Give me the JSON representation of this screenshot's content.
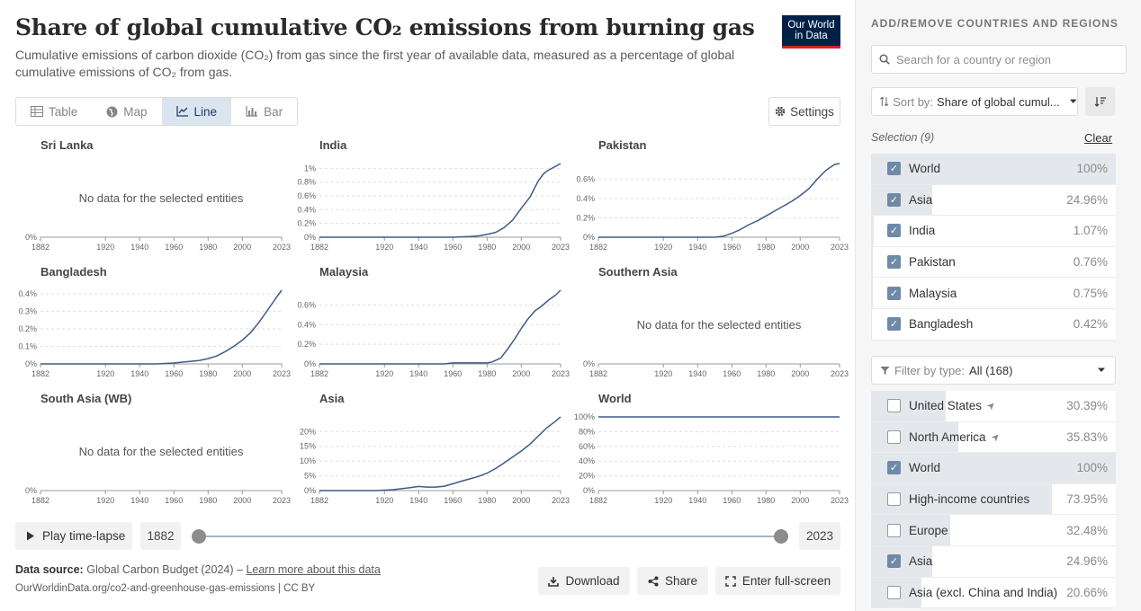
{
  "header": {
    "title": "Share of global cumulative CO₂ emissions from burning gas",
    "subtitle": "Cumulative emissions of carbon dioxide (CO₂) from gas since the first year of available data, measured as a percentage of global cumulative emissions of CO₂ from gas.",
    "logo_line1": "Our World",
    "logo_line2": "in Data"
  },
  "tabs": [
    {
      "label": "Table",
      "icon": "table-icon",
      "active": false
    },
    {
      "label": "Map",
      "icon": "globe-icon",
      "active": false
    },
    {
      "label": "Line",
      "icon": "line-chart-icon",
      "active": true
    },
    {
      "label": "Bar",
      "icon": "bar-chart-icon",
      "active": false
    }
  ],
  "settings_label": "Settings",
  "no_data_text": "No data for the selected entities",
  "chart_data": [
    {
      "type": "line",
      "title": "Sri Lanka",
      "no_data": true,
      "ylim": [
        0,
        1
      ],
      "yticks": [
        {
          "v": 0,
          "label": "0%"
        }
      ],
      "x_ticks": [
        "1882",
        "1920",
        "1940",
        "1960",
        "1980",
        "2000",
        "2023"
      ],
      "x": [],
      "values": []
    },
    {
      "type": "line",
      "title": "India",
      "no_data": false,
      "ylim": [
        0,
        1.07
      ],
      "yticks": [
        {
          "v": 0,
          "label": "0%"
        },
        {
          "v": 0.2,
          "label": "0.2%"
        },
        {
          "v": 0.4,
          "label": "0.4%"
        },
        {
          "v": 0.6,
          "label": "0.6%"
        },
        {
          "v": 0.8,
          "label": "0.8%"
        },
        {
          "v": 1,
          "label": "1%"
        }
      ],
      "x_ticks": [
        "1882",
        "1920",
        "1940",
        "1960",
        "1980",
        "2000",
        "2023"
      ],
      "x": [
        1882,
        1940,
        1960,
        1970,
        1975,
        1980,
        1985,
        1990,
        1995,
        2000,
        2005,
        2010,
        2013,
        2015,
        2020,
        2023
      ],
      "values": [
        0,
        0,
        0,
        0.01,
        0.02,
        0.04,
        0.07,
        0.14,
        0.25,
        0.42,
        0.58,
        0.82,
        0.92,
        0.96,
        1.03,
        1.07
      ]
    },
    {
      "type": "line",
      "title": "Pakistan",
      "no_data": false,
      "ylim": [
        0,
        0.76
      ],
      "yticks": [
        {
          "v": 0,
          "label": "0%"
        },
        {
          "v": 0.2,
          "label": "0.2%"
        },
        {
          "v": 0.4,
          "label": "0.4%"
        },
        {
          "v": 0.6,
          "label": "0.6%"
        }
      ],
      "x_ticks": [
        "1882",
        "1920",
        "1940",
        "1960",
        "1980",
        "2000",
        "2023"
      ],
      "x": [
        1882,
        1950,
        1955,
        1960,
        1965,
        1970,
        1975,
        1980,
        1985,
        1990,
        1995,
        2000,
        2005,
        2010,
        2015,
        2020,
        2023
      ],
      "values": [
        0,
        0,
        0.01,
        0.04,
        0.08,
        0.13,
        0.17,
        0.22,
        0.27,
        0.32,
        0.37,
        0.43,
        0.5,
        0.6,
        0.69,
        0.75,
        0.76
      ]
    },
    {
      "type": "line",
      "title": "Bangladesh",
      "no_data": false,
      "ylim": [
        0,
        0.42
      ],
      "yticks": [
        {
          "v": 0,
          "label": "0%"
        },
        {
          "v": 0.1,
          "label": "0.1%"
        },
        {
          "v": 0.2,
          "label": "0.2%"
        },
        {
          "v": 0.3,
          "label": "0.3%"
        },
        {
          "v": 0.4,
          "label": "0.4%"
        }
      ],
      "x_ticks": [
        "1882",
        "1920",
        "1940",
        "1960",
        "1980",
        "2000",
        "2023"
      ],
      "x": [
        1882,
        1950,
        1960,
        1965,
        1970,
        1975,
        1980,
        1985,
        1990,
        1995,
        2000,
        2005,
        2010,
        2015,
        2020,
        2023
      ],
      "values": [
        0,
        0,
        0.005,
        0.01,
        0.015,
        0.02,
        0.03,
        0.045,
        0.07,
        0.1,
        0.135,
        0.18,
        0.24,
        0.31,
        0.38,
        0.42
      ]
    },
    {
      "type": "line",
      "title": "Malaysia",
      "no_data": false,
      "ylim": [
        0,
        0.75
      ],
      "yticks": [
        {
          "v": 0,
          "label": "0%"
        },
        {
          "v": 0.2,
          "label": "0.2%"
        },
        {
          "v": 0.4,
          "label": "0.4%"
        },
        {
          "v": 0.6,
          "label": "0.6%"
        }
      ],
      "x_ticks": [
        "1882",
        "1920",
        "1940",
        "1960",
        "1980",
        "2000",
        "2023"
      ],
      "x": [
        1882,
        1955,
        1960,
        1970,
        1975,
        1980,
        1983,
        1988,
        1992,
        1996,
        2000,
        2004,
        2008,
        2012,
        2016,
        2020,
        2023
      ],
      "values": [
        0,
        0,
        0.01,
        0.01,
        0.01,
        0.01,
        0.02,
        0.06,
        0.15,
        0.25,
        0.36,
        0.46,
        0.54,
        0.59,
        0.65,
        0.7,
        0.75
      ]
    },
    {
      "type": "line",
      "title": "Southern Asia",
      "no_data": true,
      "ylim": [
        0,
        1
      ],
      "yticks": [
        {
          "v": 0,
          "label": "0%"
        }
      ],
      "x_ticks": [
        "1882",
        "1920",
        "1940",
        "1960",
        "1980",
        "2000",
        "2023"
      ],
      "x": [],
      "values": []
    },
    {
      "type": "line",
      "title": "South Asia (WB)",
      "no_data": true,
      "ylim": [
        0,
        1
      ],
      "yticks": [
        {
          "v": 0,
          "label": "0%"
        }
      ],
      "x_ticks": [
        "1882",
        "1920",
        "1940",
        "1960",
        "1980",
        "2000",
        "2023"
      ],
      "x": [],
      "values": []
    },
    {
      "type": "line",
      "title": "Asia",
      "no_data": false,
      "ylim": [
        0,
        24.96
      ],
      "yticks": [
        {
          "v": 0,
          "label": "0%"
        },
        {
          "v": 5,
          "label": "5%"
        },
        {
          "v": 10,
          "label": "10%"
        },
        {
          "v": 15,
          "label": "15%"
        },
        {
          "v": 20,
          "label": "20%"
        }
      ],
      "x_ticks": [
        "1882",
        "1920",
        "1940",
        "1960",
        "1980",
        "2000",
        "2023"
      ],
      "x": [
        1882,
        1915,
        1925,
        1935,
        1940,
        1945,
        1950,
        1955,
        1960,
        1965,
        1970,
        1975,
        1980,
        1985,
        1990,
        1995,
        2000,
        2005,
        2010,
        2015,
        2020,
        2023
      ],
      "values": [
        0,
        0,
        0.3,
        1.0,
        1.4,
        1.2,
        1.2,
        1.5,
        2.3,
        3.2,
        4.0,
        4.8,
        5.9,
        7.5,
        9.4,
        11.4,
        13.4,
        15.7,
        18.5,
        21.3,
        23.5,
        24.96
      ]
    },
    {
      "type": "line",
      "title": "World",
      "no_data": false,
      "ylim": [
        0,
        100
      ],
      "yticks": [
        {
          "v": 0,
          "label": "0%"
        },
        {
          "v": 20,
          "label": "20%"
        },
        {
          "v": 40,
          "label": "40%"
        },
        {
          "v": 60,
          "label": "60%"
        },
        {
          "v": 80,
          "label": "80%"
        },
        {
          "v": 100,
          "label": "100%"
        }
      ],
      "x_ticks": [
        "1882",
        "1920",
        "1940",
        "1960",
        "1980",
        "2000",
        "2023"
      ],
      "x": [
        1882,
        2023
      ],
      "values": [
        100,
        100
      ]
    }
  ],
  "timeline": {
    "play_label": "Play time-lapse",
    "start_year": "1882",
    "end_year": "2023"
  },
  "footer": {
    "source_label": "Data source:",
    "source_text": "Global Carbon Budget (2024) –",
    "learn_more": "Learn more about this data",
    "url": "OurWorldinData.org/co2-and-greenhouse-gas-emissions | CC BY",
    "download": "Download",
    "share": "Share",
    "fullscreen": "Enter full-screen"
  },
  "sidebar": {
    "title": "ADD/REMOVE COUNTRIES AND REGIONS",
    "search_placeholder": "Search for a country or region",
    "sort_label": "Sort by:",
    "sort_value": "Share of global cumul...",
    "selection_label": "Selection (9)",
    "clear_label": "Clear",
    "selected": [
      {
        "name": "World",
        "pct": "100%",
        "share": 100
      },
      {
        "name": "Asia",
        "pct": "24.96%",
        "share": 24.96
      },
      {
        "name": "India",
        "pct": "1.07%",
        "share": 1.07
      },
      {
        "name": "Pakistan",
        "pct": "0.76%",
        "share": 0.76
      },
      {
        "name": "Malaysia",
        "pct": "0.75%",
        "share": 0.75
      },
      {
        "name": "Bangladesh",
        "pct": "0.42%",
        "share": 0.42
      }
    ],
    "filter_label": "Filter by type:",
    "filter_value": "All (168)",
    "all_items": [
      {
        "name": "United States",
        "pct": "30.39%",
        "share": 30.39,
        "checked": false,
        "arrow": true
      },
      {
        "name": "North America",
        "pct": "35.83%",
        "share": 35.83,
        "checked": false,
        "arrow": true
      },
      {
        "name": "World",
        "pct": "100%",
        "share": 100,
        "checked": true,
        "arrow": false
      },
      {
        "name": "High-income countries",
        "pct": "73.95%",
        "share": 73.95,
        "checked": false,
        "arrow": false
      },
      {
        "name": "Europe",
        "pct": "32.48%",
        "share": 32.48,
        "checked": false,
        "arrow": false
      },
      {
        "name": "Asia",
        "pct": "24.96%",
        "share": 24.96,
        "checked": true,
        "arrow": false
      },
      {
        "name": "Asia (excl. China and India)",
        "pct": "20.66%",
        "share": 20.66,
        "checked": false,
        "arrow": false
      }
    ]
  }
}
